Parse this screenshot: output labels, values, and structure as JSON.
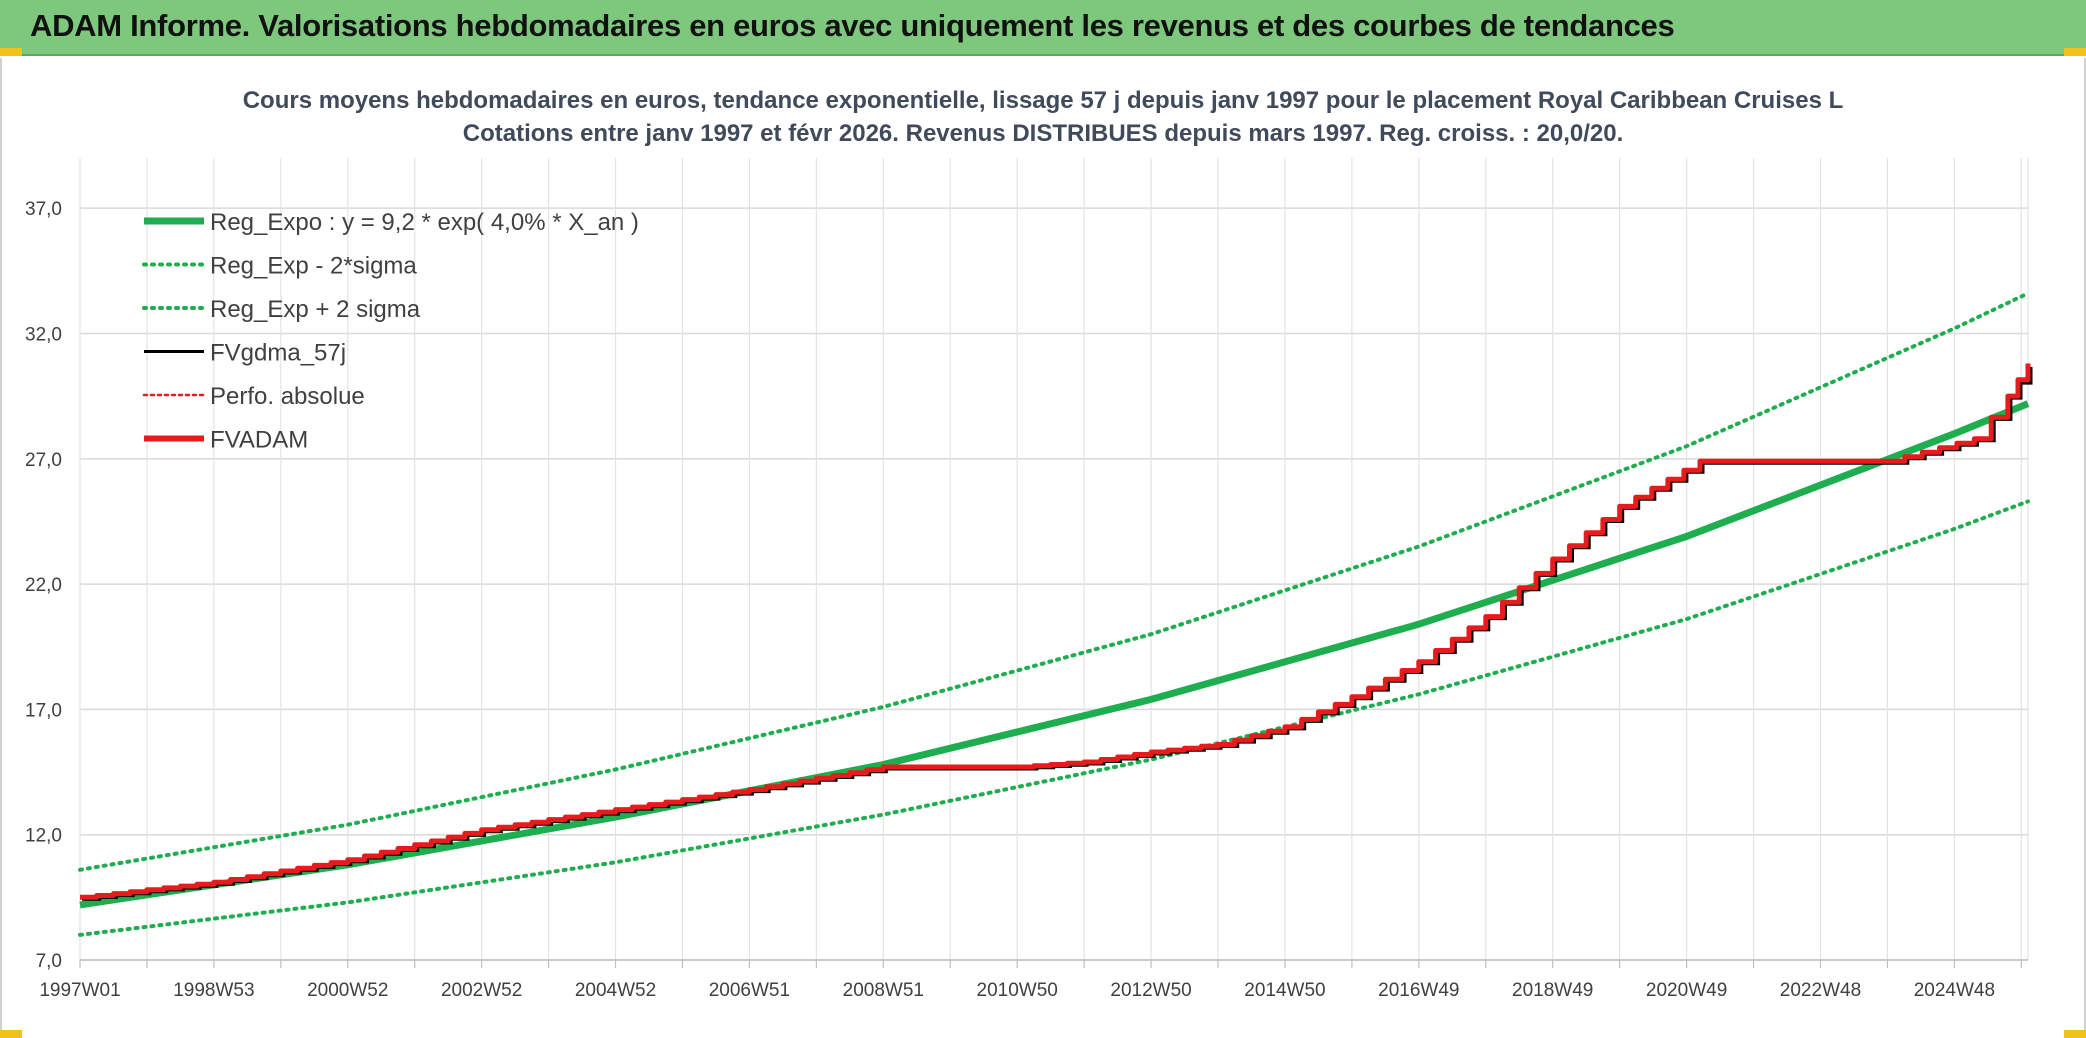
{
  "header": {
    "title": "ADAM Informe. Valorisations hebdomadaires en euros avec uniquement les revenus et des courbes de tendances"
  },
  "chart_data": {
    "type": "line",
    "title": "Cours moyens hebdomadaires en euros, tendance exponentielle, lissage 57 j depuis janv 1997 pour le placement Royal Caribbean Cruises L",
    "subtitle": "Cotations entre janv 1997 et févr 2026. Revenus DISTRIBUES depuis mars 1997. Reg. croiss. : 20,0/20.",
    "xlabel": "",
    "ylabel": "",
    "ylim": [
      7.0,
      39.0
    ],
    "xlim": [
      1997.0,
      2026.1
    ],
    "y_ticks": [
      "7,0",
      "12,0",
      "17,0",
      "22,0",
      "27,0",
      "32,0",
      "37,0"
    ],
    "x_ticks": [
      {
        "label": "1997W01",
        "year": 1997.0
      },
      {
        "label": "1998W53",
        "year": 1999.0
      },
      {
        "label": "2000W52",
        "year": 2001.0
      },
      {
        "label": "2002W52",
        "year": 2003.0
      },
      {
        "label": "2004W52",
        "year": 2005.0
      },
      {
        "label": "2006W51",
        "year": 2007.0
      },
      {
        "label": "2008W51",
        "year": 2009.0
      },
      {
        "label": "2010W50",
        "year": 2011.0
      },
      {
        "label": "2012W50",
        "year": 2013.0
      },
      {
        "label": "2014W50",
        "year": 2015.0
      },
      {
        "label": "2016W49",
        "year": 2017.0
      },
      {
        "label": "2018W49",
        "year": 2019.0
      },
      {
        "label": "2020W49",
        "year": 2021.0
      },
      {
        "label": "2022W48",
        "year": 2023.0
      },
      {
        "label": "2024W48",
        "year": 2025.0
      }
    ],
    "grid": true,
    "legend_position": "top-left",
    "legend": [
      {
        "name": "Reg_Expo : y = 9,2 * exp( 4,0% *  X_an )",
        "color": "#1fae4f",
        "style": "solid-thick"
      },
      {
        "name": "Reg_Exp - 2*sigma",
        "color": "#1fae4f",
        "style": "dotted"
      },
      {
        "name": "Reg_Exp + 2 sigma",
        "color": "#1fae4f",
        "style": "dotted"
      },
      {
        "name": "FVgdma_57j",
        "color": "#000000",
        "style": "solid"
      },
      {
        "name": "Perfo. absolue",
        "color": "#e02020",
        "style": "dotted"
      },
      {
        "name": "FVADAM",
        "color": "#e61b1b",
        "style": "solid-thick"
      }
    ],
    "series": [
      {
        "name": "Reg_Expo",
        "formula": "9.2 * exp(0.04 * (year - 1997))",
        "color": "#1fae4f",
        "x": [
          1997,
          2001,
          2005,
          2009,
          2013,
          2017,
          2021,
          2025,
          2026.1
        ],
        "values": [
          9.2,
          10.8,
          12.7,
          14.8,
          17.4,
          20.4,
          23.9,
          28.0,
          29.2
        ]
      },
      {
        "name": "Reg_Exp - 2*sigma",
        "color": "#1fae4f",
        "x": [
          1997,
          2001,
          2005,
          2009,
          2013,
          2017,
          2021,
          2025,
          2026.1
        ],
        "values": [
          8.0,
          9.3,
          10.9,
          12.8,
          15.0,
          17.6,
          20.6,
          24.2,
          25.3
        ]
      },
      {
        "name": "Reg_Exp + 2 sigma",
        "color": "#1fae4f",
        "x": [
          1997,
          2001,
          2005,
          2009,
          2013,
          2017,
          2021,
          2025,
          2026.1
        ],
        "values": [
          10.6,
          12.4,
          14.6,
          17.1,
          20.0,
          23.5,
          27.5,
          32.2,
          33.6
        ]
      },
      {
        "name": "FVADAM",
        "color": "#e61b1b",
        "x": [
          1997.0,
          1999.0,
          2001.0,
          2003.0,
          2005.0,
          2007.0,
          2009.0,
          2011.0,
          2012.0,
          2013.0,
          2014.0,
          2015.0,
          2016.0,
          2017.0,
          2018.0,
          2019.0,
          2020.0,
          2021.2,
          2022.0,
          2024.0,
          2025.3,
          2025.8,
          2026.1
        ],
        "values": [
          9.5,
          10.1,
          11.0,
          12.2,
          13.0,
          13.8,
          14.7,
          14.7,
          14.9,
          15.3,
          15.6,
          16.3,
          17.5,
          18.9,
          20.7,
          23.0,
          25.1,
          26.9,
          26.9,
          26.9,
          27.8,
          29.5,
          30.8
        ]
      },
      {
        "name": "FVgdma_57j",
        "color": "#000000",
        "x": [
          1997.0,
          1999.0,
          2001.0,
          2003.0,
          2005.0,
          2007.0,
          2009.0,
          2011.0,
          2012.0,
          2013.0,
          2014.0,
          2015.0,
          2016.0,
          2017.0,
          2018.0,
          2019.0,
          2020.0,
          2021.2,
          2022.0,
          2024.0,
          2025.3,
          2025.8,
          2026.1
        ],
        "values": [
          9.5,
          10.1,
          11.0,
          12.2,
          13.0,
          13.8,
          14.7,
          14.7,
          14.9,
          15.3,
          15.6,
          16.3,
          17.5,
          18.9,
          20.7,
          23.0,
          25.1,
          26.9,
          26.9,
          26.9,
          27.8,
          29.5,
          30.7
        ]
      }
    ]
  }
}
